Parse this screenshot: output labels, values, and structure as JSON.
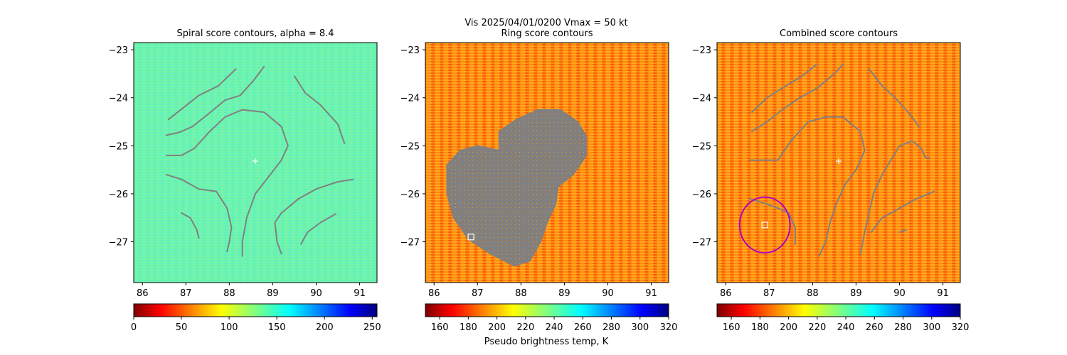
{
  "suptitle": "Vis  2025/04/01/0200    Vmax = 50 kt",
  "colorbar_label": "Pseudo brightness temp, K",
  "chart_data": [
    {
      "type": "heatmap",
      "title": "Spiral score contours, alpha =  8.4",
      "xlim": [
        85.8,
        91.4
      ],
      "ylim": [
        -27.85,
        -22.85
      ],
      "xticks": [
        86,
        87,
        88,
        89,
        90,
        91
      ],
      "yticks": [
        -23,
        -24,
        -25,
        -26,
        -27
      ],
      "colorbar": {
        "min": 0,
        "max": 255,
        "ticks": [
          0,
          50,
          100,
          150,
          200,
          250
        ],
        "colormap": "jet_r"
      },
      "center_marker": {
        "x": 88.6,
        "y": -25.32
      },
      "contours": [
        [
          [
            86.6,
            -24.45
          ],
          [
            86.95,
            -24.2
          ],
          [
            87.3,
            -23.95
          ],
          [
            87.75,
            -23.75
          ],
          [
            88.15,
            -23.4
          ]
        ],
        [
          [
            86.55,
            -24.78
          ],
          [
            86.85,
            -24.72
          ],
          [
            87.15,
            -24.6
          ],
          [
            87.5,
            -24.35
          ],
          [
            87.9,
            -24.05
          ],
          [
            88.25,
            -23.95
          ],
          [
            88.55,
            -23.65
          ],
          [
            88.8,
            -23.35
          ]
        ],
        [
          [
            86.55,
            -25.2
          ],
          [
            86.9,
            -25.2
          ],
          [
            87.2,
            -25.05
          ],
          [
            87.55,
            -24.7
          ],
          [
            87.9,
            -24.4
          ],
          [
            88.3,
            -24.25
          ],
          [
            88.8,
            -24.3
          ],
          [
            89.2,
            -24.6
          ],
          [
            89.35,
            -25.0
          ],
          [
            89.2,
            -25.3
          ],
          [
            88.9,
            -25.65
          ],
          [
            88.6,
            -26.0
          ],
          [
            88.4,
            -26.5
          ],
          [
            88.3,
            -27.0
          ],
          [
            88.3,
            -27.3
          ]
        ],
        [
          [
            86.55,
            -25.6
          ],
          [
            86.9,
            -25.7
          ],
          [
            87.3,
            -25.9
          ],
          [
            87.7,
            -25.95
          ],
          [
            87.95,
            -26.3
          ],
          [
            88.05,
            -26.7
          ],
          [
            88.0,
            -27.0
          ],
          [
            87.95,
            -27.2
          ]
        ],
        [
          [
            86.9,
            -26.4
          ],
          [
            87.1,
            -26.5
          ],
          [
            87.25,
            -26.75
          ],
          [
            87.3,
            -26.92
          ]
        ],
        [
          [
            89.5,
            -23.55
          ],
          [
            89.75,
            -23.9
          ],
          [
            90.1,
            -24.15
          ],
          [
            90.5,
            -24.55
          ],
          [
            90.65,
            -24.95
          ]
        ],
        [
          [
            89.2,
            -27.25
          ],
          [
            89.1,
            -27.0
          ],
          [
            89.05,
            -26.6
          ],
          [
            89.2,
            -26.4
          ],
          [
            89.6,
            -26.1
          ],
          [
            90.0,
            -25.9
          ],
          [
            90.5,
            -25.75
          ],
          [
            90.85,
            -25.7
          ]
        ],
        [
          [
            89.65,
            -27.05
          ],
          [
            89.8,
            -26.8
          ],
          [
            90.1,
            -26.6
          ],
          [
            90.45,
            -26.42
          ]
        ]
      ]
    },
    {
      "type": "heatmap",
      "title": "Ring score contours",
      "xlim": [
        85.8,
        91.4
      ],
      "ylim": [
        -27.85,
        -22.85
      ],
      "xticks": [
        86,
        87,
        88,
        89,
        90,
        91
      ],
      "yticks": [
        -23,
        -24,
        -25,
        -26,
        -27
      ],
      "colorbar": {
        "min": 150,
        "max": 320,
        "ticks": [
          160,
          180,
          200,
          220,
          240,
          260,
          280,
          300,
          320
        ],
        "colormap": "jet_r"
      },
      "marker": {
        "x": 86.85,
        "y": -26.9,
        "shape": "square"
      },
      "masked_region": [
        [
          86.3,
          -25.4
        ],
        [
          86.6,
          -25.1
        ],
        [
          87.0,
          -25.0
        ],
        [
          87.5,
          -25.1
        ],
        [
          87.5,
          -24.7
        ],
        [
          87.9,
          -24.45
        ],
        [
          88.4,
          -24.25
        ],
        [
          88.9,
          -24.25
        ],
        [
          89.3,
          -24.5
        ],
        [
          89.5,
          -24.8
        ],
        [
          89.5,
          -25.2
        ],
        [
          89.2,
          -25.6
        ],
        [
          88.85,
          -25.85
        ],
        [
          88.8,
          -26.2
        ],
        [
          88.6,
          -26.6
        ],
        [
          88.45,
          -27.0
        ],
        [
          88.2,
          -27.4
        ],
        [
          87.85,
          -27.5
        ],
        [
          87.3,
          -27.25
        ],
        [
          86.8,
          -26.95
        ],
        [
          86.45,
          -26.5
        ],
        [
          86.3,
          -26.0
        ]
      ]
    },
    {
      "type": "heatmap",
      "title": "Combined score contours",
      "xlim": [
        85.8,
        91.4
      ],
      "ylim": [
        -27.85,
        -22.85
      ],
      "xticks": [
        86,
        87,
        88,
        89,
        90,
        91
      ],
      "yticks": [
        -23,
        -24,
        -25,
        -26,
        -27
      ],
      "colorbar": {
        "min": 150,
        "max": 320,
        "ticks": [
          160,
          180,
          200,
          220,
          240,
          260,
          280,
          300,
          320
        ],
        "colormap": "jet_r"
      },
      "center_marker": {
        "x": 88.6,
        "y": -25.32
      },
      "marker": {
        "x": 86.9,
        "y": -26.65,
        "shape": "square"
      },
      "circle": {
        "x": 86.9,
        "y": -26.65,
        "r": 0.58
      },
      "contours": [
        [
          [
            86.6,
            -24.3
          ],
          [
            86.95,
            -24.0
          ],
          [
            87.3,
            -23.8
          ],
          [
            87.75,
            -23.55
          ],
          [
            88.1,
            -23.3
          ]
        ],
        [
          [
            86.6,
            -24.7
          ],
          [
            86.95,
            -24.5
          ],
          [
            87.3,
            -24.25
          ],
          [
            87.7,
            -24.0
          ],
          [
            88.1,
            -23.8
          ],
          [
            88.5,
            -23.5
          ],
          [
            88.7,
            -23.3
          ]
        ],
        [
          [
            86.55,
            -25.3
          ],
          [
            86.9,
            -25.3
          ],
          [
            87.2,
            -25.3
          ],
          [
            87.5,
            -24.9
          ],
          [
            87.9,
            -24.5
          ],
          [
            88.3,
            -24.4
          ],
          [
            88.7,
            -24.4
          ],
          [
            89.1,
            -24.7
          ],
          [
            89.2,
            -25.1
          ],
          [
            89.0,
            -25.5
          ],
          [
            88.75,
            -25.8
          ],
          [
            88.55,
            -26.2
          ],
          [
            88.4,
            -26.6
          ],
          [
            88.3,
            -27.0
          ],
          [
            88.15,
            -27.3
          ]
        ],
        [
          [
            86.55,
            -26.1
          ],
          [
            86.9,
            -26.2
          ],
          [
            87.2,
            -26.3
          ],
          [
            87.45,
            -26.4
          ],
          [
            87.6,
            -26.7
          ],
          [
            87.6,
            -27.05
          ]
        ],
        [
          [
            89.3,
            -23.4
          ],
          [
            89.6,
            -23.75
          ],
          [
            89.9,
            -24.0
          ],
          [
            90.2,
            -24.3
          ],
          [
            90.45,
            -24.6
          ]
        ],
        [
          [
            89.1,
            -27.25
          ],
          [
            89.2,
            -26.8
          ],
          [
            89.3,
            -26.4
          ],
          [
            89.4,
            -26.0
          ],
          [
            89.6,
            -25.6
          ],
          [
            89.8,
            -25.3
          ],
          [
            90.0,
            -25.0
          ],
          [
            90.3,
            -24.9
          ],
          [
            90.5,
            -25.05
          ],
          [
            90.6,
            -25.25
          ],
          [
            90.7,
            -25.25
          ]
        ],
        [
          [
            89.35,
            -26.8
          ],
          [
            89.6,
            -26.5
          ],
          [
            90.0,
            -26.3
          ],
          [
            90.4,
            -26.1
          ],
          [
            90.8,
            -25.95
          ]
        ],
        [
          [
            90.0,
            -26.8
          ],
          [
            90.15,
            -26.75
          ]
        ]
      ]
    }
  ]
}
